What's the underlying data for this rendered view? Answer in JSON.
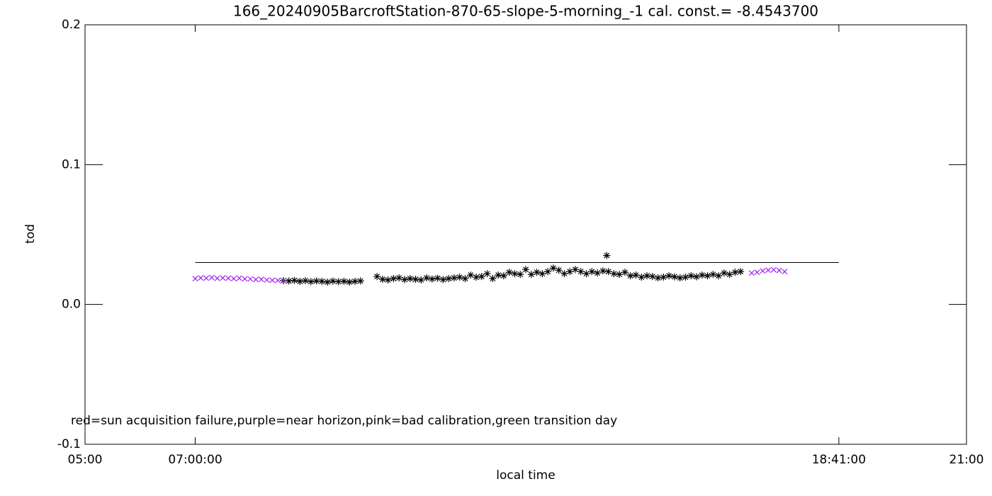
{
  "chart_data": {
    "type": "scatter",
    "title": "166_20240905BarcroftStation-870-65-slope-5-morning_-1 cal. const.= -8.4543700",
    "x_label": "local time",
    "y_label": "tod",
    "annotation": "red=sun acquisition failure,purple=near horizon,pink=bad calibration,green transition day",
    "xlim": [
      5,
      21
    ],
    "ylim": [
      -0.1,
      0.2
    ],
    "xticks": [
      {
        "value": 5,
        "label": "05:00"
      },
      {
        "value": 7,
        "label": "07:00:00"
      },
      {
        "value": 18.6833,
        "label": "18:41:00"
      },
      {
        "value": 21,
        "label": "21:00"
      }
    ],
    "yticks": [
      -0.1,
      {
        "value": 0,
        "label": "0.0"
      },
      0.1,
      0.2
    ],
    "reference_line": {
      "value": 0.03,
      "x": [
        7,
        18.6833
      ],
      "color": "#000000"
    },
    "series": [
      {
        "color": "#000000",
        "marker": "asterisk",
        "x": [
          8.6,
          8.7,
          8.8,
          8.9,
          9.0,
          9.1,
          9.2,
          9.3,
          9.4,
          9.5,
          9.6,
          9.7,
          9.8,
          9.9,
          10.0,
          10.3,
          10.4,
          10.5,
          10.6,
          10.7,
          10.8,
          10.9,
          11.0,
          11.1,
          11.2,
          11.3,
          11.4,
          11.5,
          11.6,
          11.7,
          11.8,
          11.9,
          12.0,
          12.1,
          12.2,
          12.3,
          12.4,
          12.5,
          12.6,
          12.7,
          12.8,
          12.9,
          13.0,
          13.1,
          13.2,
          13.3,
          13.4,
          13.5,
          13.6,
          13.7,
          13.8,
          13.9,
          14.0,
          14.1,
          14.2,
          14.3,
          14.4,
          14.5,
          14.6,
          14.7,
          14.8,
          14.9,
          15.0,
          15.1,
          15.2,
          15.3,
          15.4,
          15.5,
          15.6,
          15.7,
          15.8,
          15.9,
          16.0,
          16.1,
          16.2,
          16.3,
          16.4,
          16.5,
          16.6,
          16.7,
          16.8,
          16.9,
          14.47
        ],
        "values": [
          0.017,
          0.0168,
          0.0172,
          0.0165,
          0.017,
          0.0163,
          0.0168,
          0.0165,
          0.016,
          0.0167,
          0.0163,
          0.0166,
          0.016,
          0.0165,
          0.0168,
          0.02,
          0.018,
          0.0175,
          0.0185,
          0.019,
          0.0178,
          0.0185,
          0.018,
          0.0175,
          0.019,
          0.0182,
          0.0188,
          0.0178,
          0.0185,
          0.019,
          0.0195,
          0.0185,
          0.021,
          0.0195,
          0.02,
          0.022,
          0.0185,
          0.021,
          0.0205,
          0.023,
          0.022,
          0.0215,
          0.025,
          0.0215,
          0.023,
          0.022,
          0.0235,
          0.026,
          0.0245,
          0.022,
          0.0235,
          0.025,
          0.0235,
          0.022,
          0.0235,
          0.0225,
          0.024,
          0.0235,
          0.022,
          0.0215,
          0.023,
          0.0205,
          0.021,
          0.0195,
          0.0205,
          0.02,
          0.019,
          0.0195,
          0.0205,
          0.0198,
          0.019,
          0.0195,
          0.0205,
          0.0198,
          0.021,
          0.0205,
          0.0215,
          0.0205,
          0.0225,
          0.0215,
          0.023,
          0.0235,
          0.035
        ]
      },
      {
        "color": "#a020f0",
        "marker": "x",
        "x": [
          7.0,
          7.1,
          7.2,
          7.3,
          7.4,
          7.5,
          7.6,
          7.7,
          7.8,
          7.9,
          8.0,
          8.1,
          8.2,
          8.3,
          8.4,
          8.5,
          8.6,
          17.1,
          17.2,
          17.3,
          17.4,
          17.5,
          17.6,
          17.7
        ],
        "values": [
          0.0185,
          0.019,
          0.0188,
          0.0192,
          0.0187,
          0.019,
          0.0188,
          0.0185,
          0.0188,
          0.0183,
          0.0182,
          0.0178,
          0.018,
          0.0175,
          0.0173,
          0.0172,
          0.017,
          0.0225,
          0.023,
          0.024,
          0.0245,
          0.0248,
          0.0243,
          0.0235
        ]
      }
    ]
  }
}
